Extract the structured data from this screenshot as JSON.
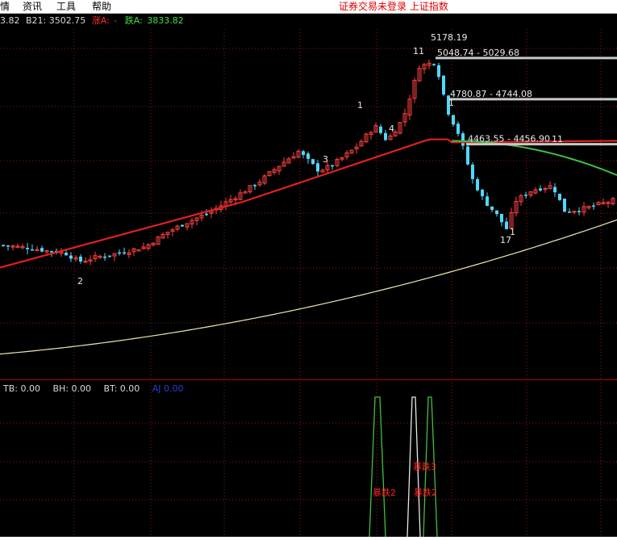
{
  "menu": {
    "items": [
      "情",
      "资讯",
      "工具",
      "帮助"
    ],
    "status_text": "证券交易未登录  上证指数"
  },
  "info_bar": {
    "left_value": "3.82",
    "b21": "B21: 3502.75",
    "zhang_label": "涨A:",
    "zhang_value": "-",
    "die_label": "跌A:",
    "die_value": "3833.82"
  },
  "chart_data": [
    {
      "type": "candlestick",
      "title": "",
      "xlabel": "",
      "ylabel": "",
      "ylim": [
        2850,
        5200
      ],
      "grid": true,
      "level_lines": [
        {
          "label": "5048.74 - 5029.68",
          "value": 5038
        },
        {
          "label": "4780.87 - 4744.08",
          "value": 4762
        },
        {
          "label": "4463.55 - 4456.90",
          "value": 4460
        }
      ],
      "peak_label": "5178.19",
      "wave_numbers": [
        "2",
        "3",
        "4",
        "1",
        "11",
        "1",
        "11",
        "17",
        "1"
      ],
      "moving_averages": [
        "red",
        "green",
        "beige"
      ]
    },
    {
      "type": "line",
      "title": "",
      "legend": [
        {
          "name": "TB",
          "value": "0.00"
        },
        {
          "name": "BH",
          "value": "0.00"
        },
        {
          "name": "BT",
          "value": "0.00"
        },
        {
          "name": "AJ",
          "value": "0.00"
        }
      ],
      "markers": [
        "暴跌2",
        "暴跌3",
        "暴跌2"
      ]
    }
  ],
  "colors": {
    "background": "#000000",
    "up": "#ff4040",
    "down": "#50d8ff",
    "grid": "#8b1a1a",
    "ma_red": "#e02020",
    "ma_green": "#40c040",
    "ma_beige": "#f0e6b0",
    "status": "#e00000",
    "indicator_green": "#40c040",
    "indicator_white": "#e8e8e8",
    "indicator_blue": "#2040d0"
  },
  "icons": []
}
